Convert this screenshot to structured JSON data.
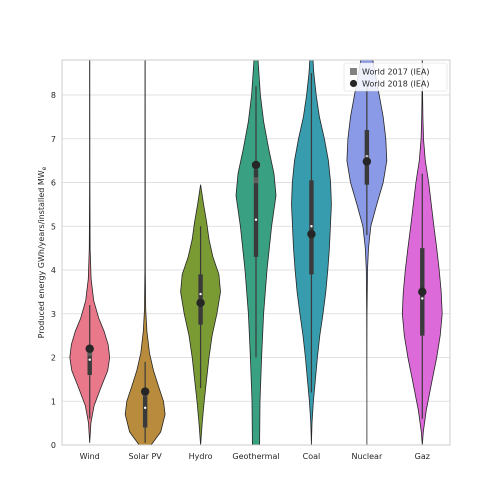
{
  "chart_data": {
    "type": "violin",
    "title": "",
    "xlabel": "",
    "ylabel": "Produced energy GWh/years/installed MW",
    "ylabel_subscript": "e",
    "ylim": [
      0,
      8.8
    ],
    "yticks": [
      0,
      1,
      2,
      3,
      4,
      5,
      6,
      7,
      8
    ],
    "grid": "horizontal",
    "legend": {
      "placement": "top-right",
      "entries": [
        {
          "label": "World 2017 (IEA)",
          "marker": "square",
          "color": "#808080"
        },
        {
          "label": "World 2018 (IEA)",
          "marker": "circle",
          "color": "#262626"
        }
      ]
    },
    "categories": [
      "Wind",
      "Solar PV",
      "Hydro",
      "Geothermal",
      "Coal",
      "Nuclear",
      "Gaz"
    ],
    "violins": [
      {
        "category": "Wind",
        "color": "#e8788a",
        "min": 0.05,
        "max": 8.8,
        "q1": 1.6,
        "median": 1.95,
        "q3": 2.2,
        "whisker_low": 0.6,
        "whisker_high": 3.2,
        "profile": [
          [
            0.05,
            0.0
          ],
          [
            0.5,
            0.06
          ],
          [
            0.9,
            0.22
          ],
          [
            1.3,
            0.55
          ],
          [
            1.7,
            0.9
          ],
          [
            2.0,
            1.0
          ],
          [
            2.3,
            0.92
          ],
          [
            2.6,
            0.72
          ],
          [
            2.9,
            0.45
          ],
          [
            3.3,
            0.2
          ],
          [
            3.8,
            0.07
          ],
          [
            4.5,
            0.02
          ],
          [
            6.0,
            0.008
          ],
          [
            8.8,
            0.005
          ]
        ],
        "iea_2017": 2.1,
        "iea_2018": 2.2
      },
      {
        "category": "Solar PV",
        "color": "#b88c3c",
        "min": 0.0,
        "max": 8.8,
        "q1": 0.4,
        "median": 0.85,
        "q3": 1.25,
        "whisker_low": 0.05,
        "whisker_high": 1.9,
        "profile": [
          [
            0.0,
            0.3
          ],
          [
            0.3,
            0.78
          ],
          [
            0.7,
            1.0
          ],
          [
            1.0,
            0.92
          ],
          [
            1.3,
            0.7
          ],
          [
            1.7,
            0.42
          ],
          [
            2.1,
            0.22
          ],
          [
            2.6,
            0.09
          ],
          [
            3.1,
            0.03
          ],
          [
            4.0,
            0.01
          ],
          [
            8.8,
            0.005
          ]
        ],
        "iea_2017": 1.18,
        "iea_2018": 1.22
      },
      {
        "category": "Hydro",
        "color": "#7a9a33",
        "min": 0.0,
        "max": 5.95,
        "q1": 2.75,
        "median": 3.45,
        "q3": 3.9,
        "whisker_low": 1.3,
        "whisker_high": 5.0,
        "profile": [
          [
            0.0,
            0.0
          ],
          [
            0.5,
            0.08
          ],
          [
            1.0,
            0.18
          ],
          [
            1.5,
            0.3
          ],
          [
            2.0,
            0.42
          ],
          [
            2.5,
            0.58
          ],
          [
            3.0,
            0.82
          ],
          [
            3.5,
            1.0
          ],
          [
            3.9,
            0.92
          ],
          [
            4.3,
            0.62
          ],
          [
            4.7,
            0.42
          ],
          [
            5.1,
            0.3
          ],
          [
            5.5,
            0.15
          ],
          [
            5.95,
            0.0
          ]
        ],
        "iea_2017": 3.28,
        "iea_2018": 3.25
      },
      {
        "category": "Geothermal",
        "color": "#3aa082",
        "min": 0.0,
        "max": 8.8,
        "q1": 4.3,
        "median": 5.15,
        "q3": 6.3,
        "whisker_low": 2.0,
        "whisker_high": 8.2,
        "profile": [
          [
            0.0,
            0.18
          ],
          [
            1.0,
            0.2
          ],
          [
            2.0,
            0.28
          ],
          [
            3.0,
            0.38
          ],
          [
            4.0,
            0.55
          ],
          [
            5.0,
            0.78
          ],
          [
            5.7,
            1.0
          ],
          [
            6.2,
            0.9
          ],
          [
            6.8,
            0.62
          ],
          [
            7.4,
            0.38
          ],
          [
            8.0,
            0.22
          ],
          [
            8.8,
            0.1
          ]
        ],
        "iea_2017": 6.05,
        "iea_2018": 6.4
      },
      {
        "category": "Coal",
        "color": "#379cae",
        "min": 0.0,
        "max": 8.8,
        "q1": 3.9,
        "median": 5.0,
        "q3": 6.05,
        "whisker_low": 1.2,
        "whisker_high": 8.5,
        "profile": [
          [
            0.0,
            0.0
          ],
          [
            0.5,
            0.03
          ],
          [
            1.0,
            0.1
          ],
          [
            1.5,
            0.2
          ],
          [
            2.0,
            0.3
          ],
          [
            2.5,
            0.42
          ],
          [
            3.0,
            0.58
          ],
          [
            3.5,
            0.72
          ],
          [
            4.0,
            0.82
          ],
          [
            4.5,
            0.9
          ],
          [
            5.0,
            0.95
          ],
          [
            5.5,
            1.0
          ],
          [
            6.0,
            0.96
          ],
          [
            6.5,
            0.85
          ],
          [
            7.0,
            0.65
          ],
          [
            7.5,
            0.4
          ],
          [
            8.0,
            0.24
          ],
          [
            8.5,
            0.12
          ],
          [
            8.8,
            0.08
          ]
        ],
        "iea_2017": 4.82,
        "iea_2018": 4.82
      },
      {
        "category": "Nuclear",
        "color": "#8a9ae6",
        "min": 0.0,
        "max": 8.8,
        "q1": 5.95,
        "median": 6.6,
        "q3": 7.2,
        "whisker_low": 4.8,
        "whisker_high": 8.2,
        "profile": [
          [
            0.0,
            0.0
          ],
          [
            1.0,
            0.0
          ],
          [
            2.0,
            0.003
          ],
          [
            3.0,
            0.008
          ],
          [
            4.0,
            0.03
          ],
          [
            4.5,
            0.08
          ],
          [
            5.0,
            0.2
          ],
          [
            5.5,
            0.5
          ],
          [
            6.0,
            0.82
          ],
          [
            6.5,
            1.0
          ],
          [
            7.0,
            0.95
          ],
          [
            7.5,
            0.82
          ],
          [
            8.0,
            0.62
          ],
          [
            8.5,
            0.42
          ],
          [
            8.8,
            0.3
          ]
        ],
        "iea_2017": 6.55,
        "iea_2018": 6.48
      },
      {
        "category": "Gaz",
        "color": "#dc6ad8",
        "min": 0.0,
        "max": 8.8,
        "q1": 2.5,
        "median": 3.35,
        "q3": 4.5,
        "whisker_low": 0.6,
        "whisker_high": 6.2,
        "profile": [
          [
            0.0,
            0.0
          ],
          [
            0.3,
            0.05
          ],
          [
            0.8,
            0.2
          ],
          [
            1.5,
            0.5
          ],
          [
            2.0,
            0.72
          ],
          [
            2.5,
            0.9
          ],
          [
            3.0,
            1.0
          ],
          [
            3.5,
            0.95
          ],
          [
            4.0,
            0.85
          ],
          [
            4.5,
            0.72
          ],
          [
            5.0,
            0.58
          ],
          [
            5.5,
            0.45
          ],
          [
            6.0,
            0.32
          ],
          [
            6.5,
            0.15
          ],
          [
            7.0,
            0.06
          ],
          [
            7.5,
            0.03
          ],
          [
            8.0,
            0.015
          ],
          [
            8.8,
            0.005
          ]
        ],
        "iea_2017": 3.52,
        "iea_2018": 3.5
      }
    ]
  }
}
